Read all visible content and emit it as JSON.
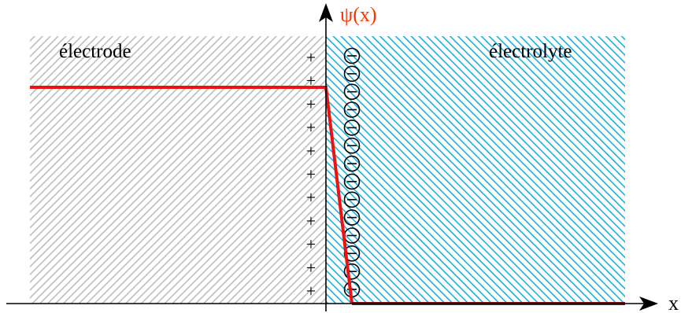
{
  "diagram": {
    "regions": {
      "electrode": {
        "label": "électrode",
        "hatch_color": "#bdbdbd"
      },
      "electrolyte": {
        "label": "électrolyte",
        "hatch_color": "#1ab0dd"
      }
    },
    "axes": {
      "y_label": "ψ(x)",
      "y_label_color": "#ff3300",
      "x_label": "x"
    },
    "charges": {
      "positive_symbol": "+",
      "positive_count": 11,
      "negative_count": 14
    },
    "potential_curve": {
      "color": "#ee1111",
      "tail_color": "#7a1010"
    }
  }
}
